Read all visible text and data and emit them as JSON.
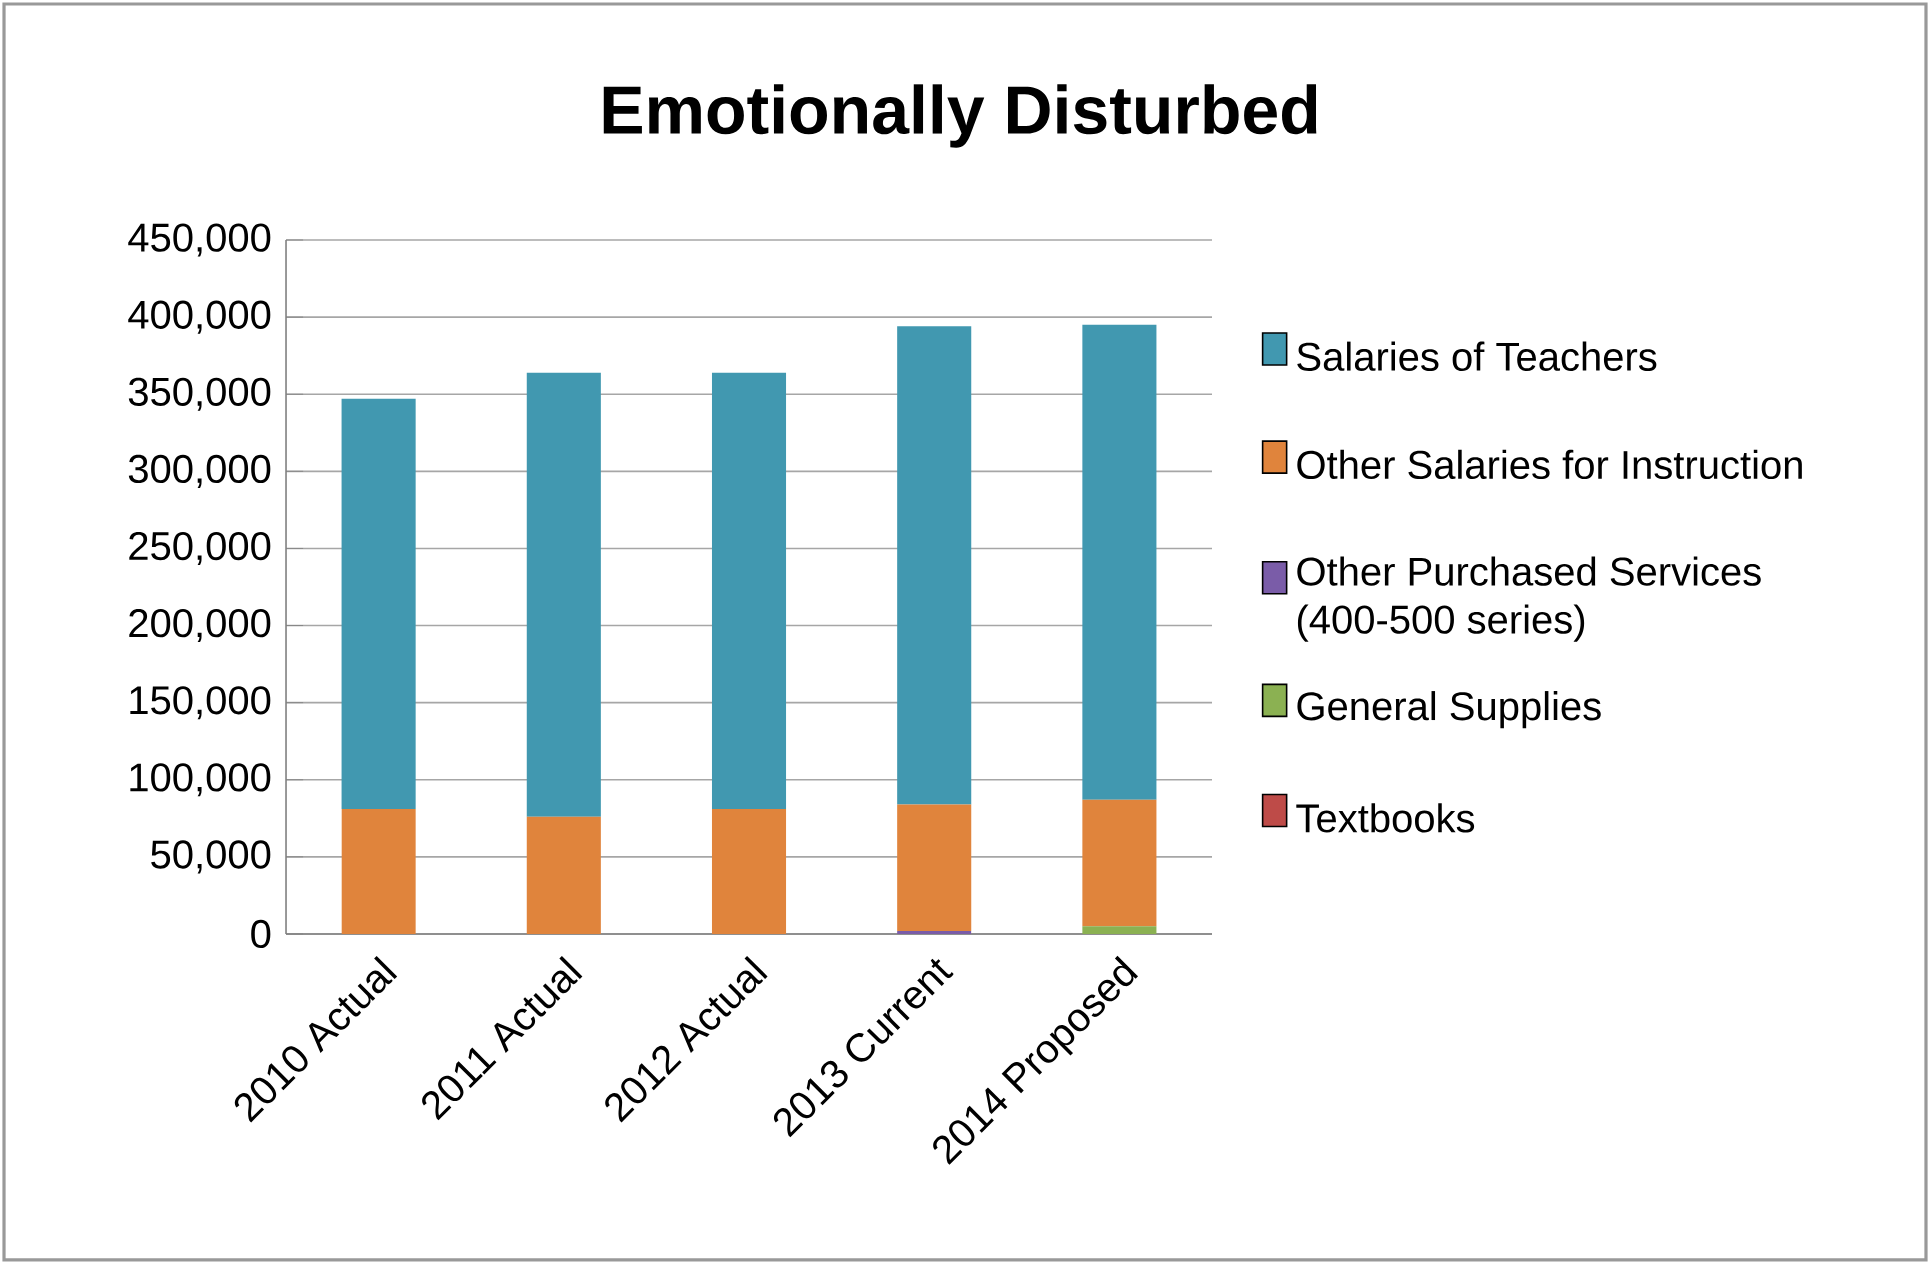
{
  "chart_data": {
    "type": "bar",
    "title": "Emotionally Disturbed",
    "stacked": true,
    "categories": [
      "2010 Actual",
      "2011 Actual",
      "2012 Actual",
      "2013 Current",
      "2014 Proposed"
    ],
    "series": [
      {
        "name": "Textbooks",
        "color": "#be4b48",
        "values": [
          0,
          0,
          0,
          0,
          0
        ]
      },
      {
        "name": "General Supplies",
        "color": "#8bb152",
        "values": [
          0,
          0,
          0,
          0,
          5000
        ]
      },
      {
        "name": "Other Purchased Services (400-500 series)",
        "color": "#7a5ca8",
        "values": [
          0,
          0,
          0,
          2000,
          0
        ]
      },
      {
        "name": "Other Salaries for Instruction",
        "color": "#e0843c",
        "values": [
          81000,
          76000,
          81000,
          82000,
          82000
        ]
      },
      {
        "name": "Salaries of Teachers",
        "color": "#4198b0",
        "values": [
          266000,
          288000,
          283000,
          310000,
          308000
        ]
      }
    ],
    "ylim": [
      0,
      450000
    ],
    "yticks": [
      {
        "value": 0,
        "label": "0"
      },
      {
        "value": 50000,
        "label": "50,000"
      },
      {
        "value": 100000,
        "label": "100,000"
      },
      {
        "value": 150000,
        "label": "150,000"
      },
      {
        "value": 200000,
        "label": "200,000"
      },
      {
        "value": 250000,
        "label": "250,000"
      },
      {
        "value": 300000,
        "label": "300,000"
      },
      {
        "value": 350000,
        "label": "350,000"
      },
      {
        "value": 400000,
        "label": "400,000"
      },
      {
        "value": 450000,
        "label": "450,000"
      }
    ],
    "grid": "y",
    "legend": "right"
  }
}
